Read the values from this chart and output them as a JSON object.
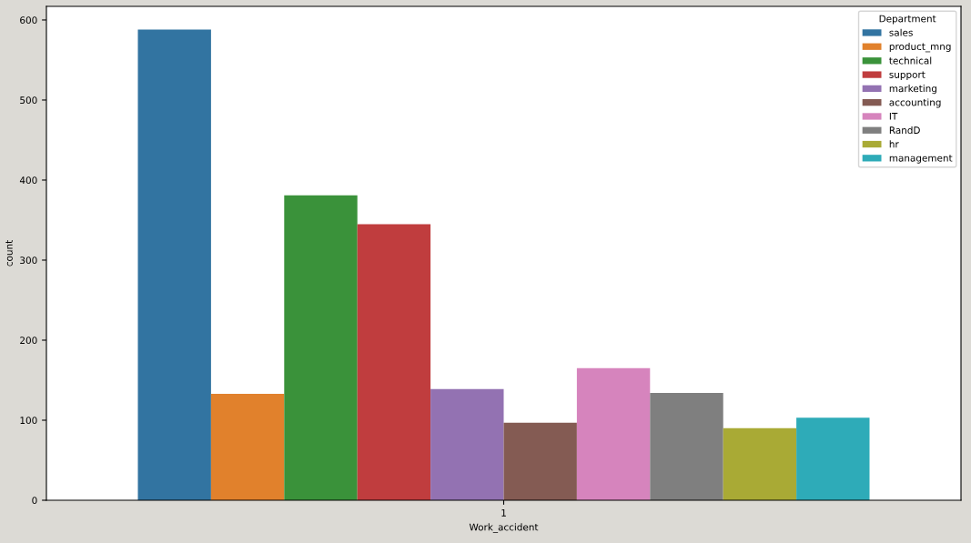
{
  "chart_data": {
    "type": "bar",
    "xlabel": "Work_accident",
    "ylabel": "count",
    "legend_title": "Department",
    "categories": [
      "1"
    ],
    "series": [
      {
        "name": "sales",
        "color": "#3274a1",
        "values": [
          588
        ]
      },
      {
        "name": "product_mng",
        "color": "#e1812c",
        "values": [
          133
        ]
      },
      {
        "name": "technical",
        "color": "#3a923a",
        "values": [
          381
        ]
      },
      {
        "name": "support",
        "color": "#c03d3e",
        "values": [
          345
        ]
      },
      {
        "name": "marketing",
        "color": "#9372b2",
        "values": [
          139
        ]
      },
      {
        "name": "accounting",
        "color": "#845b53",
        "values": [
          97
        ]
      },
      {
        "name": "IT",
        "color": "#d684bd",
        "values": [
          165
        ]
      },
      {
        "name": "RandD",
        "color": "#7f7f7f",
        "values": [
          134
        ]
      },
      {
        "name": "hr",
        "color": "#a9aa35",
        "values": [
          90
        ]
      },
      {
        "name": "management",
        "color": "#2eabb8",
        "values": [
          103
        ]
      }
    ],
    "ylim": [
      0,
      617
    ],
    "yticks": [
      0,
      100,
      200,
      300,
      400,
      500,
      600
    ],
    "legend": "top right",
    "grid": false
  }
}
